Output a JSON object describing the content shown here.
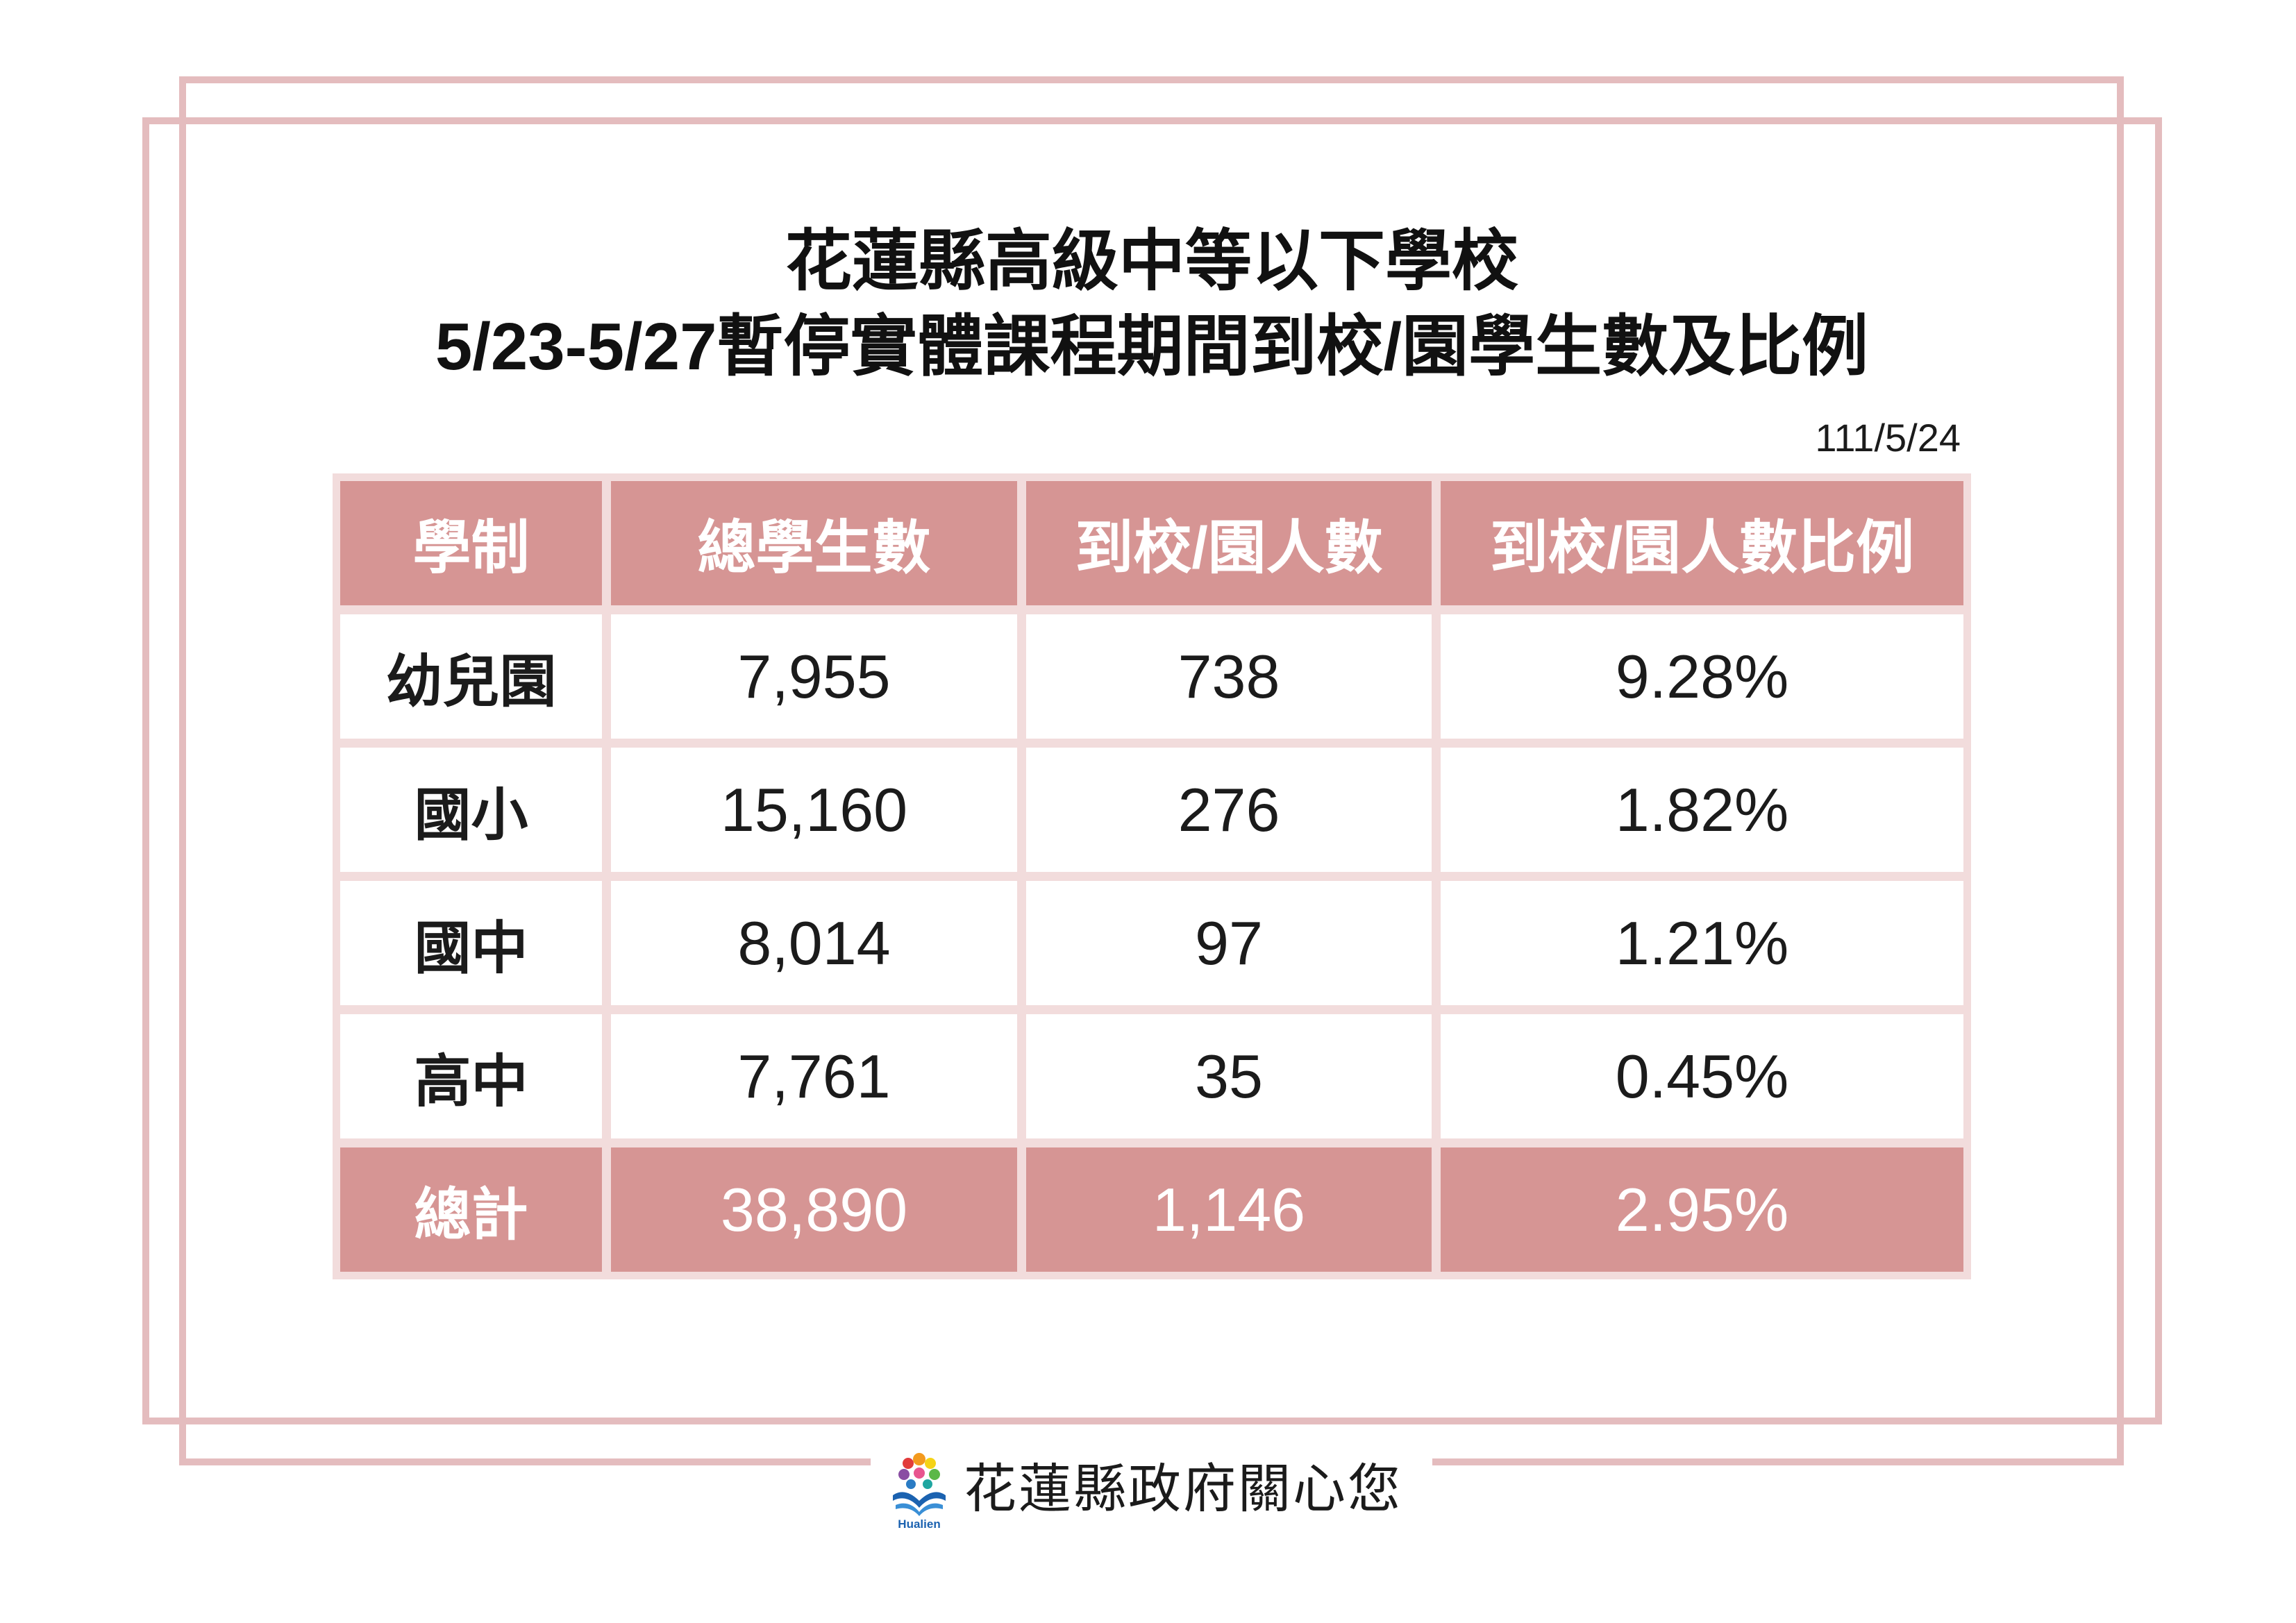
{
  "title": {
    "line1": "花蓮縣高級中等以下學校",
    "line2": "5/23-5/27暫停實體課程期間到校/園學生數及比例"
  },
  "date": "111/5/24",
  "table": {
    "headers": [
      "學制",
      "總學生數",
      "到校/園人數",
      "到校/園人數比例"
    ],
    "rows": [
      {
        "level": "幼兒園",
        "total": "7,955",
        "attending": "738",
        "ratio": "9.28%"
      },
      {
        "level": "國小",
        "total": "15,160",
        "attending": "276",
        "ratio": "1.82%"
      },
      {
        "level": "國中",
        "total": "8,014",
        "attending": "97",
        "ratio": "1.21%"
      },
      {
        "level": "高中",
        "total": "7,761",
        "attending": "35",
        "ratio": "0.45%"
      }
    ],
    "total_row": {
      "level": "總計",
      "total": "38,890",
      "attending": "1,146",
      "ratio": "2.95%"
    }
  },
  "footer": {
    "slogan": "花蓮縣政府關心您",
    "logo_icon": "hualien-county-logo",
    "logo_text": "Hualien"
  },
  "colors": {
    "frame": "#e4bcbe",
    "header_fill": "#d69594",
    "table_bg": "#f2dcdc",
    "header_text": "#ffffff",
    "body_text": "#1b1b1b"
  }
}
